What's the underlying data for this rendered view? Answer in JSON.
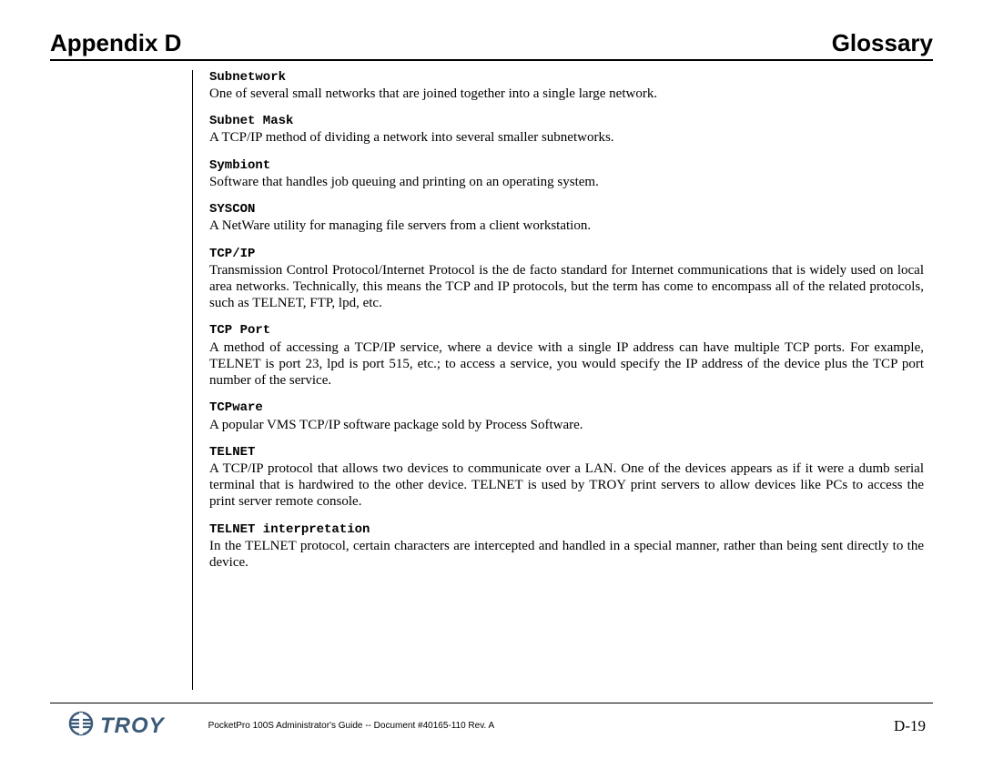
{
  "header": {
    "left": "Appendix D",
    "right": "Glossary"
  },
  "entries": [
    {
      "term": "Subnetwork",
      "definition": "One of several small networks that are joined together into a single large network.",
      "justify": false
    },
    {
      "term": "Subnet Mask",
      "definition": "A TCP/IP method of dividing a network into several smaller subnetworks.",
      "justify": false
    },
    {
      "term": "Symbiont",
      "definition": "Software that handles job queuing and printing on an operating system.",
      "justify": false
    },
    {
      "term": "SYSCON",
      "definition": "A NetWare utility for managing file servers from a client workstation.",
      "justify": false
    },
    {
      "term": "TCP/IP",
      "definition": "Transmission Control Protocol/Internet Protocol is the de facto standard for Internet communications that is widely used on local area networks.  Technically, this means the TCP and IP protocols, but the term has come to encompass all of the related protocols, such as TELNET, FTP, lpd, etc.",
      "justify": true
    },
    {
      "term": "TCP Port",
      "definition": "A method of accessing a TCP/IP service, where a device with a single IP address can have multiple TCP ports.  For example, TELNET is port 23, lpd is port 515, etc.; to access a service, you would specify the IP address of the device plus the TCP port number of the service.",
      "justify": true
    },
    {
      "term": "TCPware",
      "definition": "A popular VMS TCP/IP software package sold by Process Software.",
      "justify": false
    },
    {
      "term": "TELNET",
      "definition": "A TCP/IP protocol that allows two devices to communicate over a LAN.  One of the devices appears as if it were a dumb serial terminal that is hardwired to the other device.  TELNET is used by TROY print servers to allow devices like PCs to access the print server remote console.",
      "justify": true
    },
    {
      "term": "TELNET interpretation",
      "definition": "In the TELNET protocol, certain characters are intercepted and handled in a special manner, rather than being sent directly to the device.",
      "justify": true
    }
  ],
  "footer": {
    "logo_text": "TROY",
    "logo_color": "#3a5a78",
    "doc_id": "PocketPro 100S Administrator's Guide -- Document #40165-110  Rev. A",
    "page_number": "D-19"
  }
}
